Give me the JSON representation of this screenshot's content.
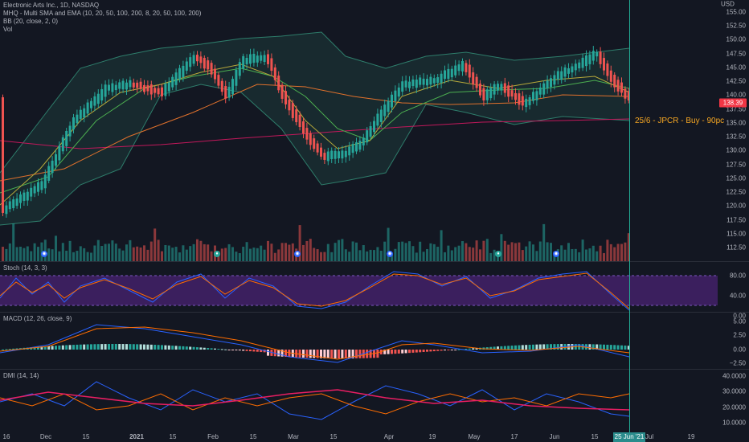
{
  "main": {
    "title": "Electronic Arts Inc., 1D, NASDAQ",
    "ind1": "MHQ - Multi SMA and EMA (10, 20, 50, 100, 200, 8, 20, 50, 100, 200)",
    "ind2": "BB (20, close, 2, 0)",
    "ind3": "Vol",
    "currency": "USD",
    "price_label": "138.39",
    "annotation": "25/6 - JPCR - Buy - 90pc",
    "y_ticks": [
      "155.00",
      "152.50",
      "150.00",
      "147.50",
      "145.00",
      "142.50",
      "140.00",
      "137.50",
      "135.00",
      "132.50",
      "130.00",
      "127.50",
      "125.00",
      "122.50",
      "120.00",
      "117.50",
      "115.00",
      "112.50"
    ]
  },
  "stoch": {
    "title": "Stoch (14, 3, 3)",
    "y_ticks": [
      "80.00",
      "40.00",
      "0.00"
    ]
  },
  "macd": {
    "title": "MACD (12, 26, close, 9)",
    "y_ticks": [
      "5.00",
      "2.50",
      "0.00",
      "−2.50"
    ]
  },
  "dmi": {
    "title": "DMI (14, 14)",
    "y_ticks": [
      "40.0000",
      "30.0000",
      "20.0000",
      "10.0000"
    ]
  },
  "xaxis": {
    "ticks": [
      "16",
      "Dec",
      "15",
      "2021",
      "15",
      "Feb",
      "15",
      "Mar",
      "15",
      "Apr",
      "19",
      "May",
      "17",
      "Jun",
      "15",
      "Jul",
      "19"
    ],
    "current": "25 Jun '21"
  },
  "colors": {
    "up": "#26a69a",
    "down": "#ef5350",
    "stochband": "#3b1f5e",
    "vline": "#22ab94",
    "annot": "#f5a623"
  },
  "icons": [
    "earnings-marker-icon",
    "dividend-marker-icon"
  ]
}
